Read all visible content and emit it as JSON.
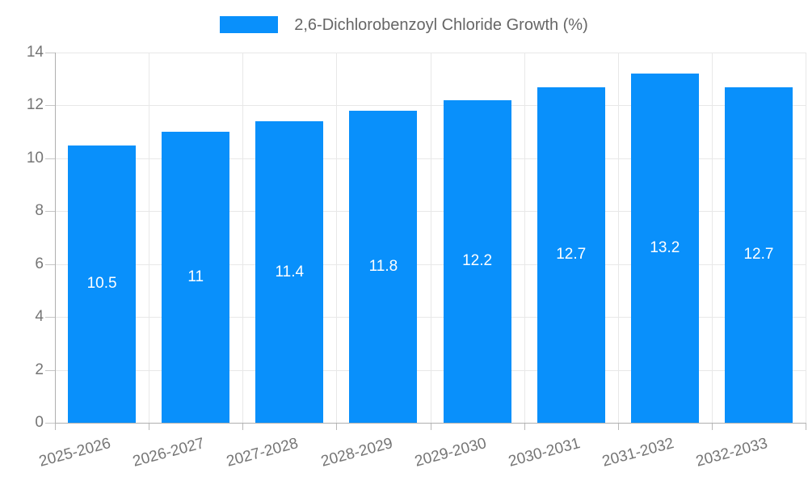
{
  "chart_data": {
    "type": "bar",
    "title": "2,6-Dichlorobenzoyl Chloride Growth (%)",
    "legend": {
      "label": "2,6-Dichlorobenzoyl Chloride Growth (%)",
      "position": "top"
    },
    "categories": [
      "2025-2026",
      "2026-2027",
      "2027-2028",
      "2028-2029",
      "2029-2030",
      "2030-2031",
      "2031-2032",
      "2032-2033"
    ],
    "series": [
      {
        "name": "2,6-Dichlorobenzoyl Chloride Growth (%)",
        "values": [
          10.5,
          11,
          11.4,
          11.8,
          12.2,
          12.7,
          13.2,
          12.7
        ]
      }
    ],
    "xlabel": "",
    "ylabel": "",
    "ylim": [
      0,
      14
    ],
    "ytick_step": 2,
    "grid": true,
    "bar_color": "#0990fb",
    "value_label_color": "#ffffff",
    "tick_label_color": "#757575",
    "legend_text_color": "#666666",
    "grid_color": "#e8e8e8",
    "axis_line_color": "#b0b0b0",
    "background_color": "#ffffff"
  }
}
